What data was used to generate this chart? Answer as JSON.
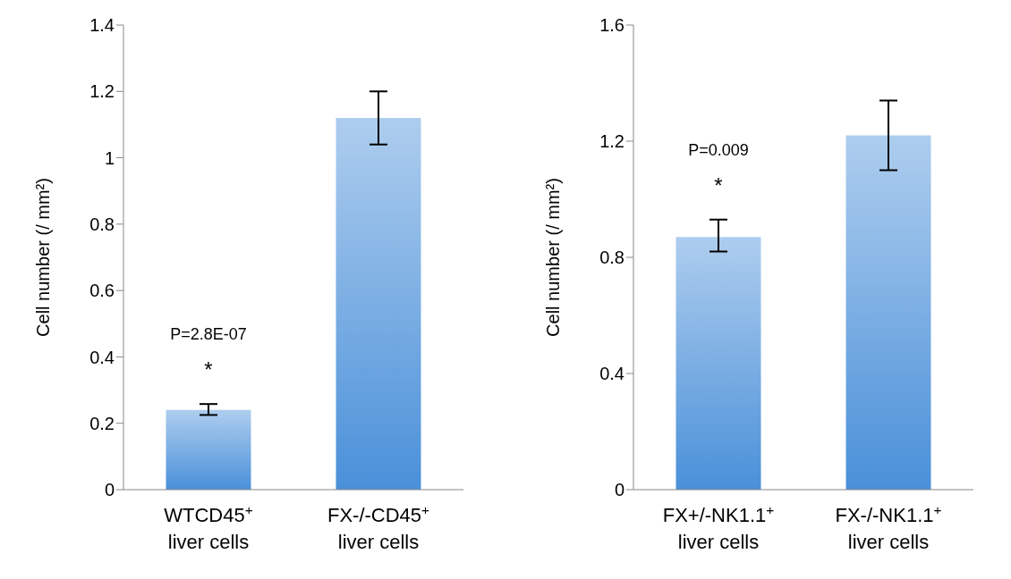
{
  "chart_data": [
    {
      "type": "bar",
      "categories": [
        "WTCD45$^{+}$ liver cells",
        "FX-/-CD45$^{+}$ liver cells"
      ],
      "values": [
        0.24,
        1.12
      ],
      "errors": [
        [
          0.225,
          0.258
        ],
        [
          1.04,
          1.2
        ]
      ],
      "color": "#4a90d9",
      "ylabel": "Cell number (/ mm²)",
      "ylim": [
        0,
        1.4
      ],
      "yticks": [
        0,
        0.2,
        0.4,
        0.6,
        0.8,
        1,
        1.2,
        1.4
      ],
      "grid": false,
      "annotations": [
        "P=2.8E-07",
        "*"
      ]
    },
    {
      "type": "bar",
      "categories": [
        "FX+/-NK1.1$^{+}$ liver cells",
        "FX-/-NK1.1$^{+}$ liver cells"
      ],
      "values": [
        0.87,
        1.22
      ],
      "errors": [
        [
          0.82,
          0.93
        ],
        [
          1.1,
          1.34
        ]
      ],
      "color": "#4a90d9",
      "ylabel": "Cell number (/ mm²)",
      "ylim": [
        0,
        1.6
      ],
      "yticks": [
        0,
        0.4,
        0.8,
        1.2,
        1.6
      ],
      "grid": false,
      "annotations": [
        "P=0.009",
        "*"
      ]
    }
  ]
}
